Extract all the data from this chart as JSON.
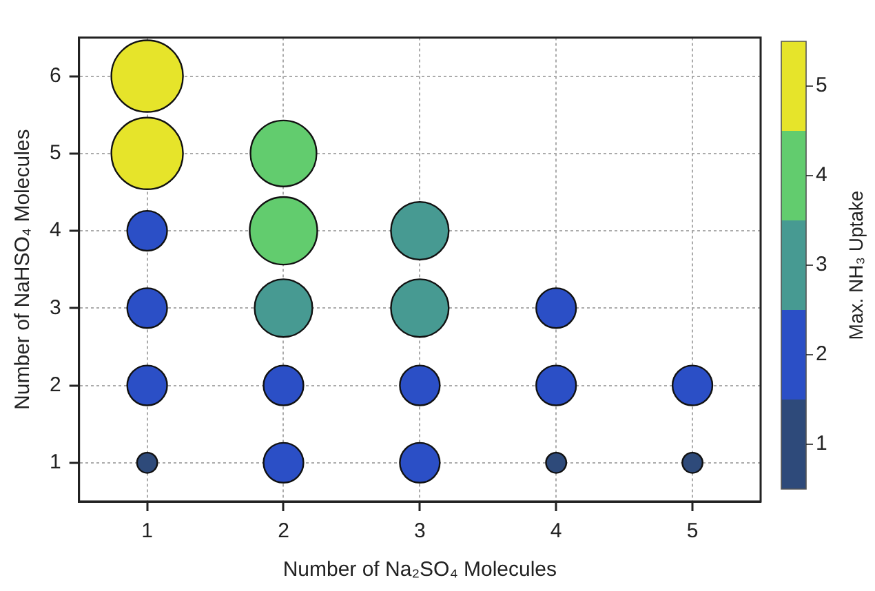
{
  "chart_data": {
    "type": "bubble",
    "xlabel": "Number of Na₂SO₄ Molecules",
    "ylabel": "Number of NaHSO₄ Molecules",
    "clabel": "Max. NH₃ Uptake",
    "x": [
      1,
      1,
      1,
      1,
      1,
      1,
      2,
      2,
      2,
      2,
      2,
      3,
      3,
      3,
      3,
      4,
      4,
      4,
      5,
      5
    ],
    "values": [
      1,
      2,
      3,
      4,
      5,
      6,
      1,
      2,
      3,
      4,
      5,
      1,
      2,
      3,
      4,
      1,
      2,
      3,
      1,
      2
    ],
    "sizes": [
      0.08,
      0.31,
      0.31,
      0.31,
      1,
      1,
      0.31,
      0.31,
      0.65,
      0.89,
      0.85,
      0.31,
      0.31,
      0.65,
      0.65,
      0.08,
      0.31,
      0.31,
      0.08,
      0.31
    ],
    "colors": [
      "#2e4a7a",
      "#2b4fc6",
      "#2b4fc6",
      "#2b4fc6",
      "#e6e42a",
      "#e6e42a",
      "#2b4fc6",
      "#2b4fc6",
      "#479a92",
      "#62cc6e",
      "#62cc6e",
      "#2b4fc6",
      "#2b4fc6",
      "#479a92",
      "#479a92",
      "#2e4a7a",
      "#2b4fc6",
      "#2b4fc6",
      "#2e4a7a",
      "#2b4fc6"
    ],
    "xlim": [
      0.5,
      5.5
    ],
    "xticks": [
      1,
      2,
      3,
      4,
      5
    ],
    "ylim": [
      0.5,
      6.5
    ],
    "yticks": [
      1,
      2,
      3,
      4,
      5,
      6
    ],
    "clim": [
      0.5,
      5.5
    ],
    "cticks": [
      1,
      2,
      3,
      4,
      5
    ],
    "grid": true,
    "legend": false
  }
}
